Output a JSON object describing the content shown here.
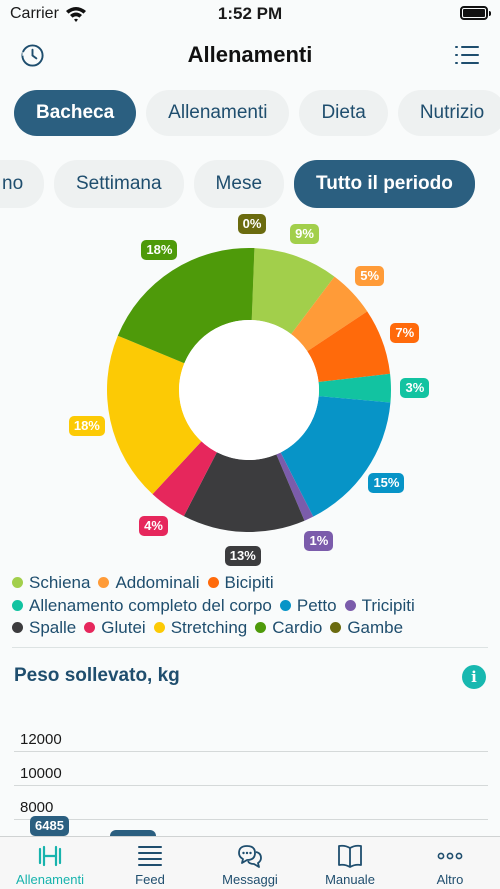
{
  "status_bar": {
    "carrier": "Carrier",
    "time": "1:52 PM"
  },
  "header": {
    "title": "Allenamenti",
    "left_icon": "clock-history-icon",
    "right_icon": "list-menu-icon"
  },
  "main_tabs": [
    {
      "label": "Bacheca",
      "active": true
    },
    {
      "label": "Allenamenti",
      "active": false
    },
    {
      "label": "Dieta",
      "active": false
    },
    {
      "label": "Nutrizio",
      "active": false
    }
  ],
  "period_tabs": [
    {
      "label": "no",
      "active": false
    },
    {
      "label": "Settimana",
      "active": false
    },
    {
      "label": "Mese",
      "active": false
    },
    {
      "label": "Tutto il periodo",
      "active": true
    }
  ],
  "chart_data": {
    "type": "pie",
    "donut": true,
    "slices": [
      {
        "name": "Gambe",
        "percent": 0,
        "label": "0%",
        "color": "#6b6b0f"
      },
      {
        "name": "Schiena",
        "percent": 9,
        "label": "9%",
        "color": "#a2cf4b"
      },
      {
        "name": "Addominali",
        "percent": 5,
        "label": "5%",
        "color": "#ff9b38"
      },
      {
        "name": "Bicipiti",
        "percent": 7,
        "label": "7%",
        "color": "#ff6a0b"
      },
      {
        "name": "Allenamento completo del corpo",
        "percent": 3,
        "label": "3%",
        "color": "#12c3a1"
      },
      {
        "name": "Petto",
        "percent": 15,
        "label": "15%",
        "color": "#0794c7"
      },
      {
        "name": "Tricipiti",
        "percent": 1,
        "label": "1%",
        "color": "#7b5cab"
      },
      {
        "name": "Spalle",
        "percent": 13,
        "label": "13%",
        "color": "#3c3c3e"
      },
      {
        "name": "Glutei",
        "percent": 4,
        "label": "4%",
        "color": "#e6275c"
      },
      {
        "name": "Stretching",
        "percent": 18,
        "label": "18%",
        "color": "#fcca05"
      },
      {
        "name": "Cardio",
        "percent": 18,
        "label": "18%",
        "color": "#4e9a0a"
      }
    ]
  },
  "legend": [
    {
      "label": "Schiena",
      "color": "#a2cf4b"
    },
    {
      "label": "Addominali",
      "color": "#ff9b38"
    },
    {
      "label": "Bicipiti",
      "color": "#ff6a0b"
    },
    {
      "label": "Allenamento completo del corpo",
      "color": "#12c3a1"
    },
    {
      "label": "Petto",
      "color": "#0794c7"
    },
    {
      "label": "Tricipiti",
      "color": "#7b5cab"
    },
    {
      "label": "Spalle",
      "color": "#3c3c3e"
    },
    {
      "label": "Glutei",
      "color": "#e6275c"
    },
    {
      "label": "Stretching",
      "color": "#fcca05"
    },
    {
      "label": "Cardio",
      "color": "#4e9a0a"
    },
    {
      "label": "Gambe",
      "color": "#6b6b0f"
    }
  ],
  "weight_section": {
    "title": "Peso sollevato, kg",
    "info_icon": "i",
    "ticks": [
      "12000",
      "10000",
      "8000"
    ],
    "value_badge": "6485"
  },
  "tab_bar": [
    {
      "label": "Allenamenti",
      "icon": "dumbbell-icon",
      "active": true
    },
    {
      "label": "Feed",
      "icon": "feed-icon",
      "active": false
    },
    {
      "label": "Messaggi",
      "icon": "chat-bubbles-icon",
      "active": false
    },
    {
      "label": "Manuale",
      "icon": "book-icon",
      "active": false
    },
    {
      "label": "Altro",
      "icon": "more-dots-icon",
      "active": false
    }
  ],
  "colors": {
    "accent_dark": "#2b5f80",
    "accent_teal": "#17b3ad"
  }
}
